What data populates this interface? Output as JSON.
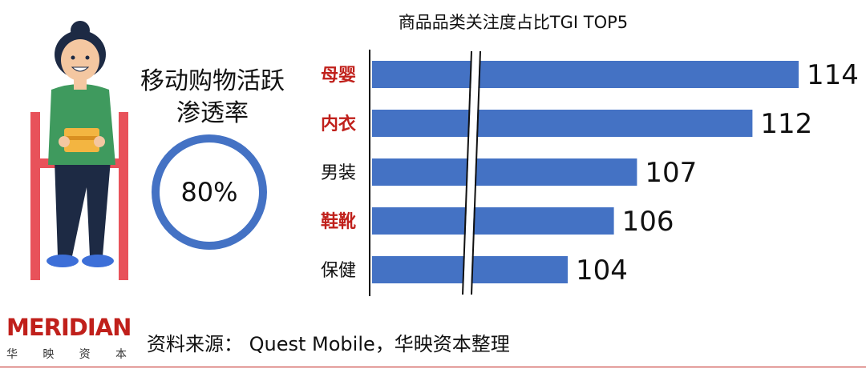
{
  "left_panel": {
    "rate_label": "移动购物活跃渗透率",
    "rate_value_text": "80%",
    "rate_value": 80
  },
  "chart_data": {
    "type": "bar",
    "orientation": "horizontal",
    "title": "商品品类关注度占比TGI TOP5",
    "categories": [
      "母婴",
      "内衣",
      "男装",
      "鞋靴",
      "保健"
    ],
    "values": [
      114,
      112,
      107,
      106,
      104
    ],
    "highlighted_categories": [
      "母婴",
      "内衣",
      "鞋靴"
    ],
    "axis_break": true,
    "xlabel": "",
    "ylabel": "",
    "grid": false,
    "colors": {
      "bar": "#4472c4",
      "highlight_label": "#c0201b",
      "normal_label": "#111111",
      "ring": "#4472c4"
    }
  },
  "footer": {
    "logo_text": "MERIDIAN",
    "logo_sub": [
      "华",
      "映",
      "资",
      "本"
    ],
    "source": "资料来源： Quest Mobile，华映资本整理"
  }
}
